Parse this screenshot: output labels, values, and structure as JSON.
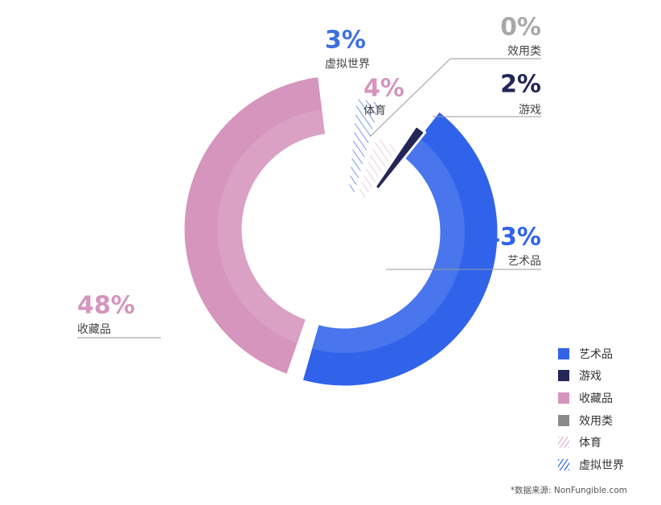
{
  "chart_data": {
    "type": "donut",
    "title": "",
    "slices": [
      {
        "label": "艺术品",
        "value": 43,
        "display": "43%",
        "color": "#3063ea",
        "fill": "solid"
      },
      {
        "label": "收藏品",
        "value": 48,
        "display": "48%",
        "color": "#d595bd",
        "fill": "solid"
      },
      {
        "label": "虚拟世界",
        "value": 3,
        "display": "3%",
        "color": "#3d6fe0",
        "fill": "hatched"
      },
      {
        "label": "体育",
        "value": 4,
        "display": "4%",
        "color": "#e6b8d0",
        "fill": "hatched"
      },
      {
        "label": "游戏",
        "value": 2,
        "display": "2%",
        "color": "#232656",
        "fill": "solid"
      },
      {
        "label": "效用类",
        "value": 0,
        "display": "0%",
        "color": "#8a8a8a",
        "fill": "solid"
      }
    ],
    "legend": {
      "position": "bottom-right",
      "items": [
        "艺术品",
        "游戏",
        "收藏品",
        "效用类",
        "体育",
        "虚拟世界"
      ]
    }
  },
  "source_note": "*数据来源: NonFungible.com",
  "colors": {
    "art": "#3063ea",
    "collectibles": "#d595bd",
    "games": "#232656",
    "utility": "#8a8a8a",
    "sports": "#e6b8d0",
    "virtual_world": "#3d6fe0"
  }
}
